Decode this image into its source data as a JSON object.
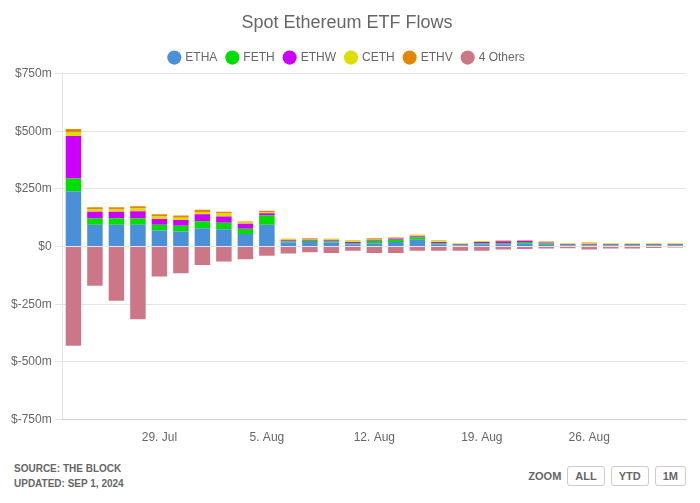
{
  "chart_data": {
    "type": "bar",
    "title": "Spot Ethereum ETF Flows",
    "categories": [
      null,
      null,
      null,
      null,
      "29. Jul",
      null,
      null,
      null,
      null,
      "5. Aug",
      null,
      null,
      null,
      null,
      "12. Aug",
      null,
      null,
      null,
      null,
      "19. Aug",
      null,
      null,
      null,
      null,
      "26. Aug",
      null,
      null,
      null,
      null
    ],
    "series": [
      {
        "name": "ETHA",
        "color": "#4a90d9",
        "values": [
          240,
          95,
          95,
          95,
          70,
          65,
          80,
          75,
          55,
          95,
          18,
          20,
          18,
          10,
          15,
          20,
          30,
          10,
          5,
          10,
          10,
          15,
          8,
          5,
          5,
          5,
          5,
          5,
          5
        ]
      },
      {
        "name": "FETH",
        "color": "#00dd00",
        "values": [
          55,
          28,
          28,
          28,
          25,
          25,
          30,
          28,
          22,
          40,
          5,
          5,
          5,
          5,
          10,
          10,
          10,
          5,
          3,
          5,
          5,
          5,
          5,
          3,
          3,
          3,
          3,
          3,
          3
        ]
      },
      {
        "name": "ETHW",
        "color": "#cc00ff",
        "values": [
          185,
          28,
          28,
          30,
          25,
          25,
          30,
          28,
          22,
          10,
          5,
          5,
          5,
          5,
          5,
          5,
          5,
          5,
          3,
          5,
          8,
          5,
          5,
          3,
          3,
          3,
          3,
          3,
          3
        ]
      },
      {
        "name": "CETH",
        "color": "#dddd00",
        "values": [
          15,
          10,
          10,
          12,
          10,
          10,
          10,
          12,
          5,
          5,
          3,
          3,
          3,
          3,
          3,
          3,
          3,
          3,
          2,
          2,
          2,
          2,
          2,
          2,
          2,
          2,
          2,
          2,
          2
        ]
      },
      {
        "name": "ETHV",
        "color": "#e08800",
        "values": [
          15,
          10,
          10,
          10,
          10,
          10,
          10,
          8,
          5,
          5,
          3,
          3,
          3,
          3,
          3,
          3,
          3,
          3,
          2,
          2,
          2,
          2,
          2,
          2,
          5,
          2,
          2,
          2,
          2
        ]
      },
      {
        "name": "4 Others",
        "color": "#cc7788",
        "values": [
          -430,
          -170,
          -235,
          -315,
          -130,
          -115,
          -80,
          -65,
          -55,
          -40,
          -30,
          -25,
          -28,
          -18,
          -28,
          -28,
          -18,
          -18,
          -18,
          -18,
          -13,
          -10,
          -8,
          -7,
          -13,
          -8,
          -8,
          -6,
          -4
        ]
      }
    ],
    "stacked": true,
    "ylim": [
      -750,
      750
    ],
    "yticks": [
      {
        "value": -750,
        "label": "$-750m"
      },
      {
        "value": -500,
        "label": "$-500m"
      },
      {
        "value": -250,
        "label": "$-250m"
      },
      {
        "value": 0,
        "label": "$0"
      },
      {
        "value": 250,
        "label": "$250m"
      },
      {
        "value": 500,
        "label": "$500m"
      },
      {
        "value": 750,
        "label": "$750m"
      }
    ],
    "grid": true,
    "legend": "top",
    "annotations": [
      "SOURCE: THE BLOCK\nUPDATED: SEP 1, 2024",
      "ZOOM",
      "ALL",
      "YTD",
      "1M"
    ]
  }
}
